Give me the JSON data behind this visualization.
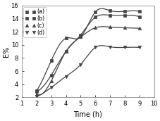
{
  "title": "",
  "xlabel": "Time (h)",
  "ylabel": "E%",
  "xlim": [
    1.5,
    9.5
  ],
  "ylim": [
    2,
    16
  ],
  "yticks": [
    2,
    4,
    6,
    8,
    10,
    12,
    14,
    16
  ],
  "xticks": [
    2,
    3,
    4,
    5,
    6,
    7,
    8,
    9
  ],
  "xtick_labels": [
    "2",
    "3",
    "4",
    "5",
    "6",
    "7",
    "8",
    "9"
  ],
  "extra_xticks": [
    1,
    10
  ],
  "extra_xtick_labels": [
    "1",
    "10"
  ],
  "series": [
    {
      "label": "(a)",
      "x": [
        2,
        3,
        4,
        5,
        6,
        7,
        8,
        9
      ],
      "y": [
        3.0,
        7.6,
        11.0,
        11.2,
        15.0,
        15.2,
        15.1,
        15.1
      ],
      "marker": "s",
      "color": "#444444"
    },
    {
      "label": "(b)",
      "x": [
        2,
        3,
        4,
        5,
        6,
        7,
        8,
        9
      ],
      "y": [
        2.9,
        5.4,
        9.0,
        11.5,
        14.2,
        14.5,
        14.5,
        14.3
      ],
      "marker": "s",
      "color": "#444444"
    },
    {
      "label": "(c)",
      "x": [
        2,
        3,
        4,
        5,
        6,
        7,
        8,
        9
      ],
      "y": [
        2.5,
        4.5,
        9.0,
        11.2,
        12.6,
        12.7,
        12.6,
        12.5
      ],
      "marker": "^",
      "color": "#444444"
    },
    {
      "label": "(d)",
      "x": [
        2,
        3,
        4,
        5,
        6,
        7,
        8,
        9
      ],
      "y": [
        2.1,
        3.5,
        5.2,
        7.0,
        9.6,
        9.7,
        9.6,
        9.6
      ],
      "marker": "v",
      "color": "#444444"
    }
  ],
  "background_color": "#ffffff",
  "legend_fontsize": 5.8,
  "axis_fontsize": 7,
  "tick_fontsize": 6.0
}
